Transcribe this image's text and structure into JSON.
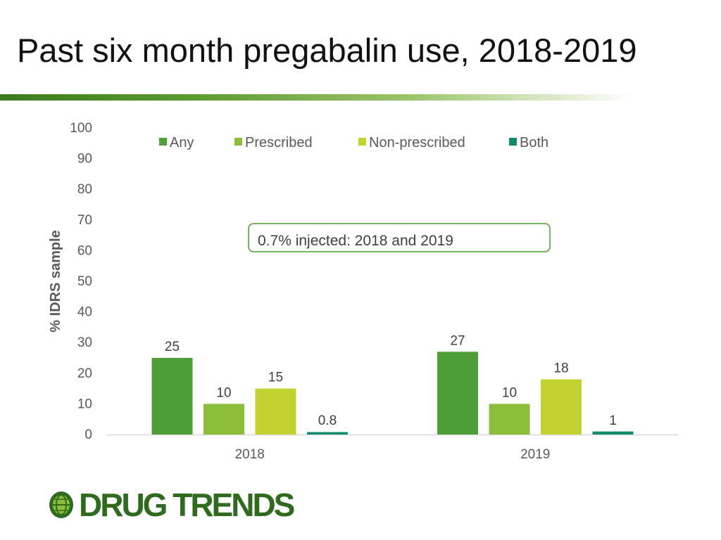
{
  "slide": {
    "title": "Past six month pregabalin use, 2018-2019"
  },
  "logo": {
    "text": "DRUG TRENDS",
    "color": "#2f6b1e"
  },
  "chart_data": {
    "type": "bar",
    "title": "",
    "xlabel": "",
    "ylabel": "% IDRS sample",
    "ylim": [
      0,
      100
    ],
    "yticks": [
      0,
      10,
      20,
      30,
      40,
      50,
      60,
      70,
      80,
      90,
      100
    ],
    "categories": [
      "2018",
      "2019"
    ],
    "series": [
      {
        "name": "Any",
        "color": "#4f9e38",
        "values": [
          25,
          27
        ],
        "labels": [
          "25",
          "27"
        ]
      },
      {
        "name": "Prescribed",
        "color": "#8cbd3a",
        "values": [
          10,
          10
        ],
        "labels": [
          "10",
          "10"
        ]
      },
      {
        "name": "Non-prescribed",
        "color": "#c2d331",
        "values": [
          15,
          18
        ],
        "labels": [
          "15",
          "18"
        ]
      },
      {
        "name": "Both",
        "color": "#0f8a6c",
        "values": [
          0.8,
          1
        ],
        "labels": [
          "0.8",
          "1"
        ]
      }
    ],
    "legend_position": "top",
    "grid": false,
    "annotation": "0.7% injected: 2018 and 2019"
  }
}
